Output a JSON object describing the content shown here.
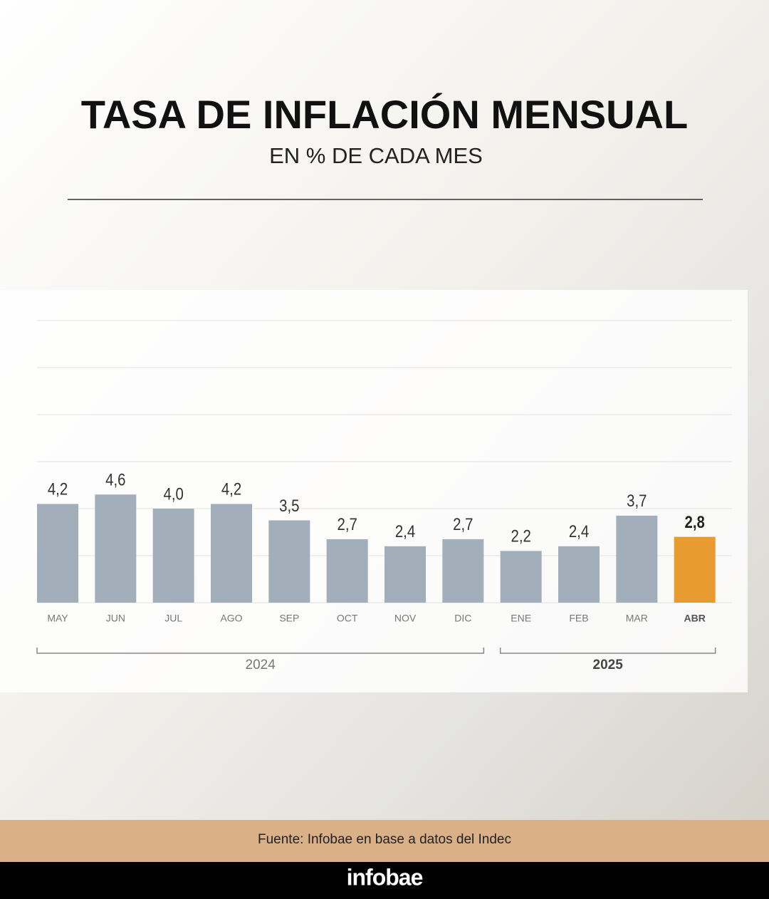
{
  "chart_data": {
    "type": "bar",
    "title": "TASA DE INFLACIÓN MENSUAL",
    "subtitle": "EN % DE CADA MES",
    "categories": [
      "MAY",
      "JUN",
      "JUL",
      "AGO",
      "SEP",
      "OCT",
      "NOV",
      "DIC",
      "ENE",
      "FEB",
      "MAR",
      "ABR"
    ],
    "values": [
      4.2,
      4.6,
      4.0,
      4.2,
      3.5,
      2.7,
      2.4,
      2.7,
      2.2,
      2.4,
      3.7,
      2.8
    ],
    "value_labels": [
      "4,2",
      "4,6",
      "4,0",
      "4,2",
      "3,5",
      "2,7",
      "2,4",
      "2,7",
      "2,2",
      "2,4",
      "3,7",
      "2,8"
    ],
    "color": "#a3aebb",
    "highlight_color": "#e89b30",
    "highlight_index": 11,
    "groups": [
      {
        "label": "2024",
        "start": 0,
        "end": 7
      },
      {
        "label": "2025",
        "start": 8,
        "end": 11
      }
    ],
    "ylim": [
      0,
      12
    ],
    "yticks": [
      0,
      2,
      4,
      6,
      8,
      10,
      12
    ],
    "grid": true,
    "source": "Fuente: Infobae en base a datos del Indec",
    "brand": "infobae"
  }
}
